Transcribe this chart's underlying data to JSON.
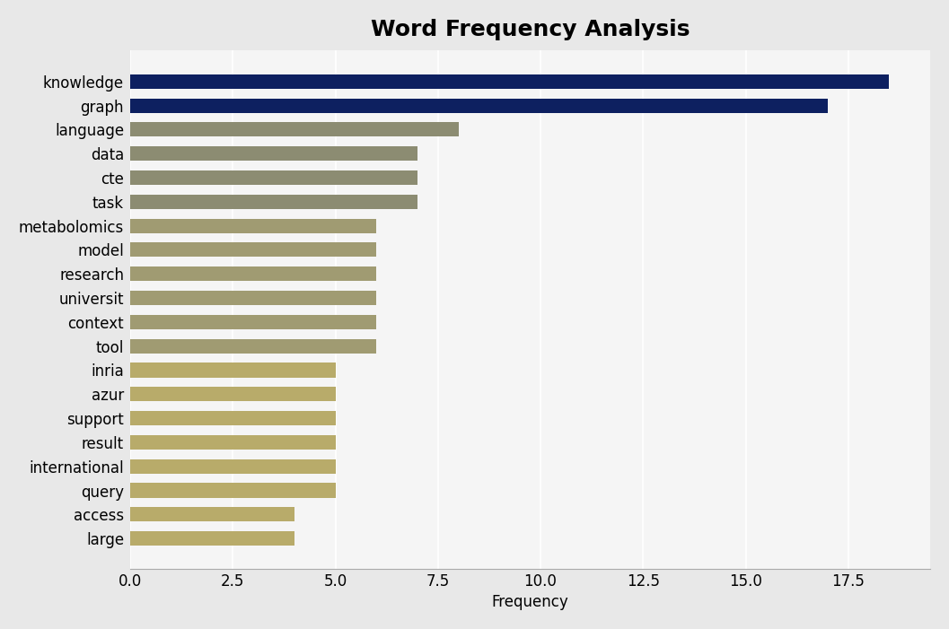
{
  "title": "Word Frequency Analysis",
  "xlabel": "Frequency",
  "categories": [
    "knowledge",
    "graph",
    "language",
    "data",
    "cte",
    "task",
    "metabolomics",
    "model",
    "research",
    "universit",
    "context",
    "tool",
    "inria",
    "azur",
    "support",
    "result",
    "international",
    "query",
    "access",
    "large"
  ],
  "values": [
    18.5,
    17.0,
    8.0,
    7.0,
    7.0,
    7.0,
    6.0,
    6.0,
    6.0,
    6.0,
    6.0,
    6.0,
    5.0,
    5.0,
    5.0,
    5.0,
    5.0,
    5.0,
    4.0,
    4.0
  ],
  "bar_colors": [
    "#0d2060",
    "#0d2060",
    "#8c8c72",
    "#8c8c72",
    "#8c8c72",
    "#8c8c72",
    "#a09b72",
    "#a09b72",
    "#a09b72",
    "#a09b72",
    "#a09b72",
    "#a09b72",
    "#b8ab6a",
    "#b8ab6a",
    "#b8ab6a",
    "#b8ab6a",
    "#b8ab6a",
    "#b8ab6a",
    "#b8ab6a",
    "#b8ab6a"
  ],
  "figure_bg": "#e8e8e8",
  "plot_bg": "#f5f5f5",
  "grid_color": "#ffffff",
  "title_fontsize": 18,
  "label_fontsize": 12,
  "tick_fontsize": 12,
  "xticks": [
    0.0,
    2.5,
    5.0,
    7.5,
    10.0,
    12.5,
    15.0,
    17.5
  ],
  "xlim": [
    0,
    19.5
  ]
}
